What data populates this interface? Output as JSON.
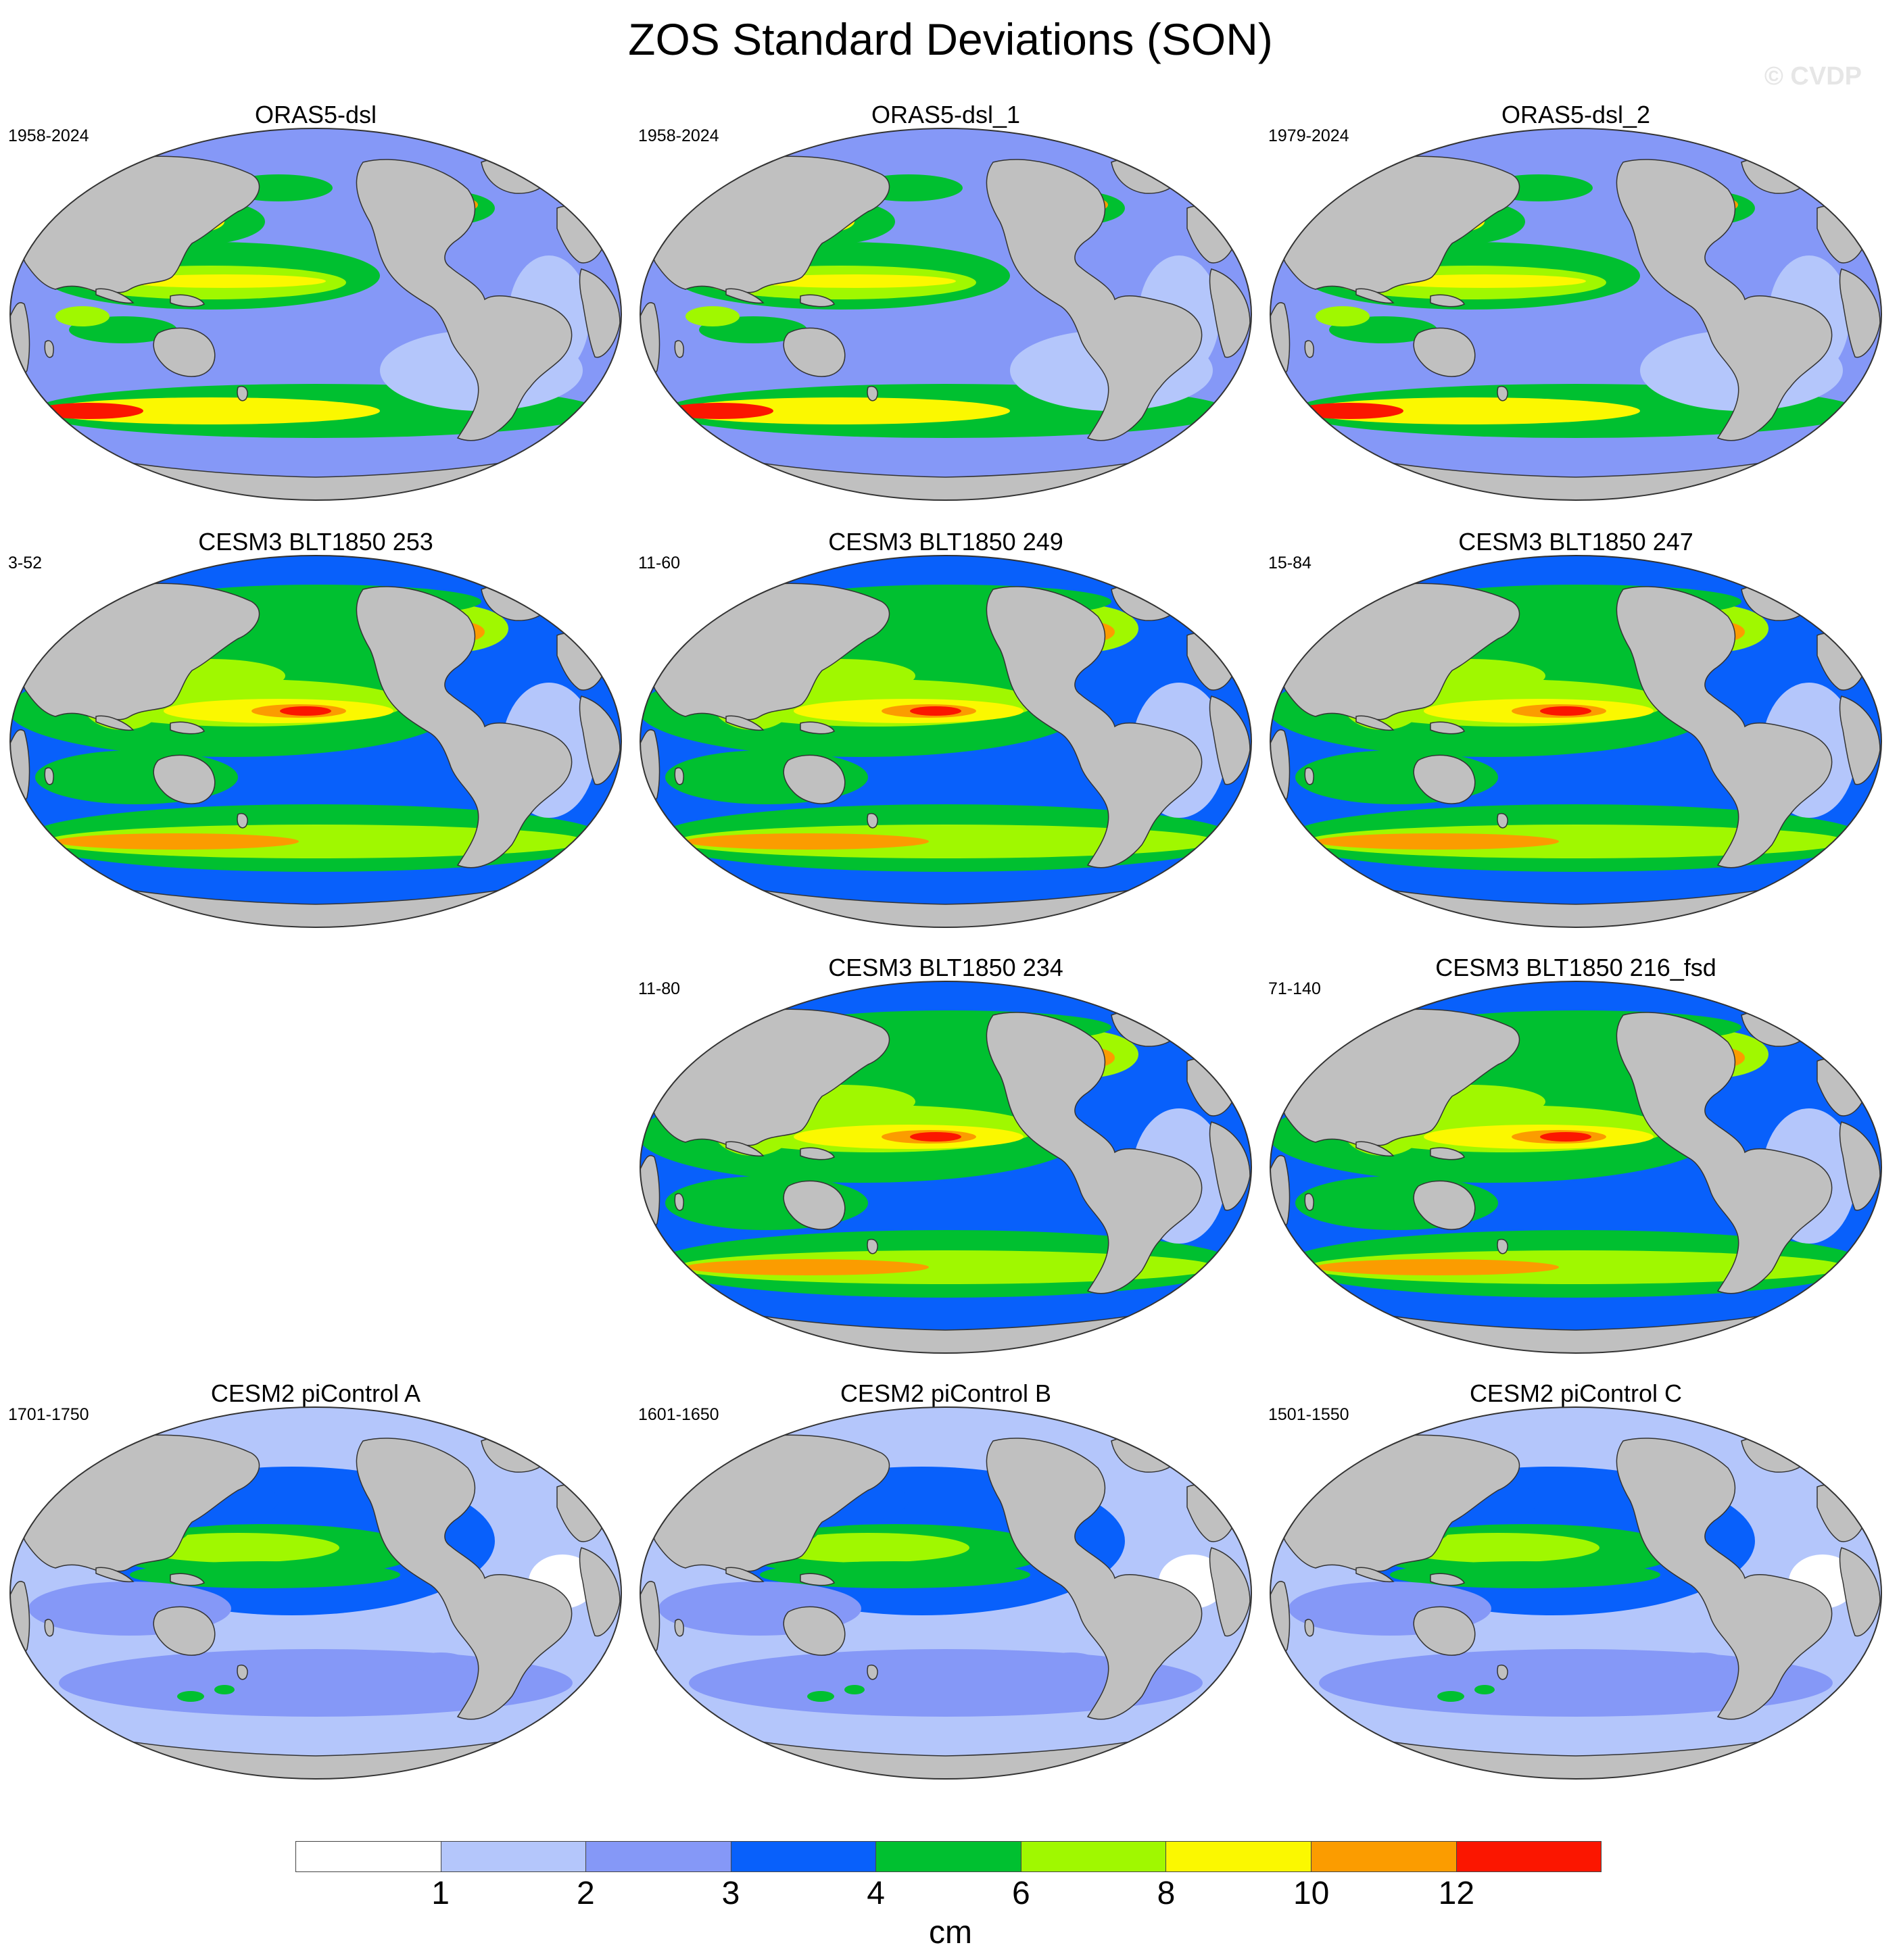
{
  "title": "ZOS Standard Deviations (SON)",
  "watermark": "© CVDP",
  "panels": [
    {
      "title": "ORAS5-dsl",
      "years": "1958-2024",
      "row": 0,
      "col": 0,
      "style": "oras"
    },
    {
      "title": "ORAS5-dsl_1",
      "years": "1958-2024",
      "row": 0,
      "col": 1,
      "style": "oras"
    },
    {
      "title": "ORAS5-dsl_2",
      "years": "1979-2024",
      "row": 0,
      "col": 2,
      "style": "oras"
    },
    {
      "title": "CESM3 BLT1850 253",
      "years": "3-52",
      "row": 1,
      "col": 0,
      "style": "cesm3"
    },
    {
      "title": "CESM3 BLT1850 249",
      "years": "11-60",
      "row": 1,
      "col": 1,
      "style": "cesm3"
    },
    {
      "title": "CESM3 BLT1850 247",
      "years": "15-84",
      "row": 1,
      "col": 2,
      "style": "cesm3"
    },
    {
      "title": "CESM3 BLT1850 234",
      "years": "11-80",
      "row": 2,
      "col": 1,
      "style": "cesm3"
    },
    {
      "title": "CESM3 BLT1850 216_fsd",
      "years": "71-140",
      "row": 2,
      "col": 2,
      "style": "cesm3"
    },
    {
      "title": "CESM2 piControl A",
      "years": "1701-1750",
      "row": 3,
      "col": 0,
      "style": "cesm2"
    },
    {
      "title": "CESM2 piControl B",
      "years": "1601-1650",
      "row": 3,
      "col": 1,
      "style": "cesm2"
    },
    {
      "title": "CESM2 piControl C",
      "years": "1501-1550",
      "row": 3,
      "col": 2,
      "style": "cesm2"
    }
  ],
  "colorbar": {
    "colors": [
      "#ffffff",
      "#b4c6fb",
      "#8598f7",
      "#0860fb",
      "#00c030",
      "#a0f800",
      "#fbf800",
      "#fb9c00",
      "#fb1600"
    ],
    "labels": [
      "1",
      "2",
      "3",
      "4",
      "6",
      "8",
      "10",
      "12"
    ],
    "units": "cm"
  },
  "land_color": "#c0c0c0"
}
